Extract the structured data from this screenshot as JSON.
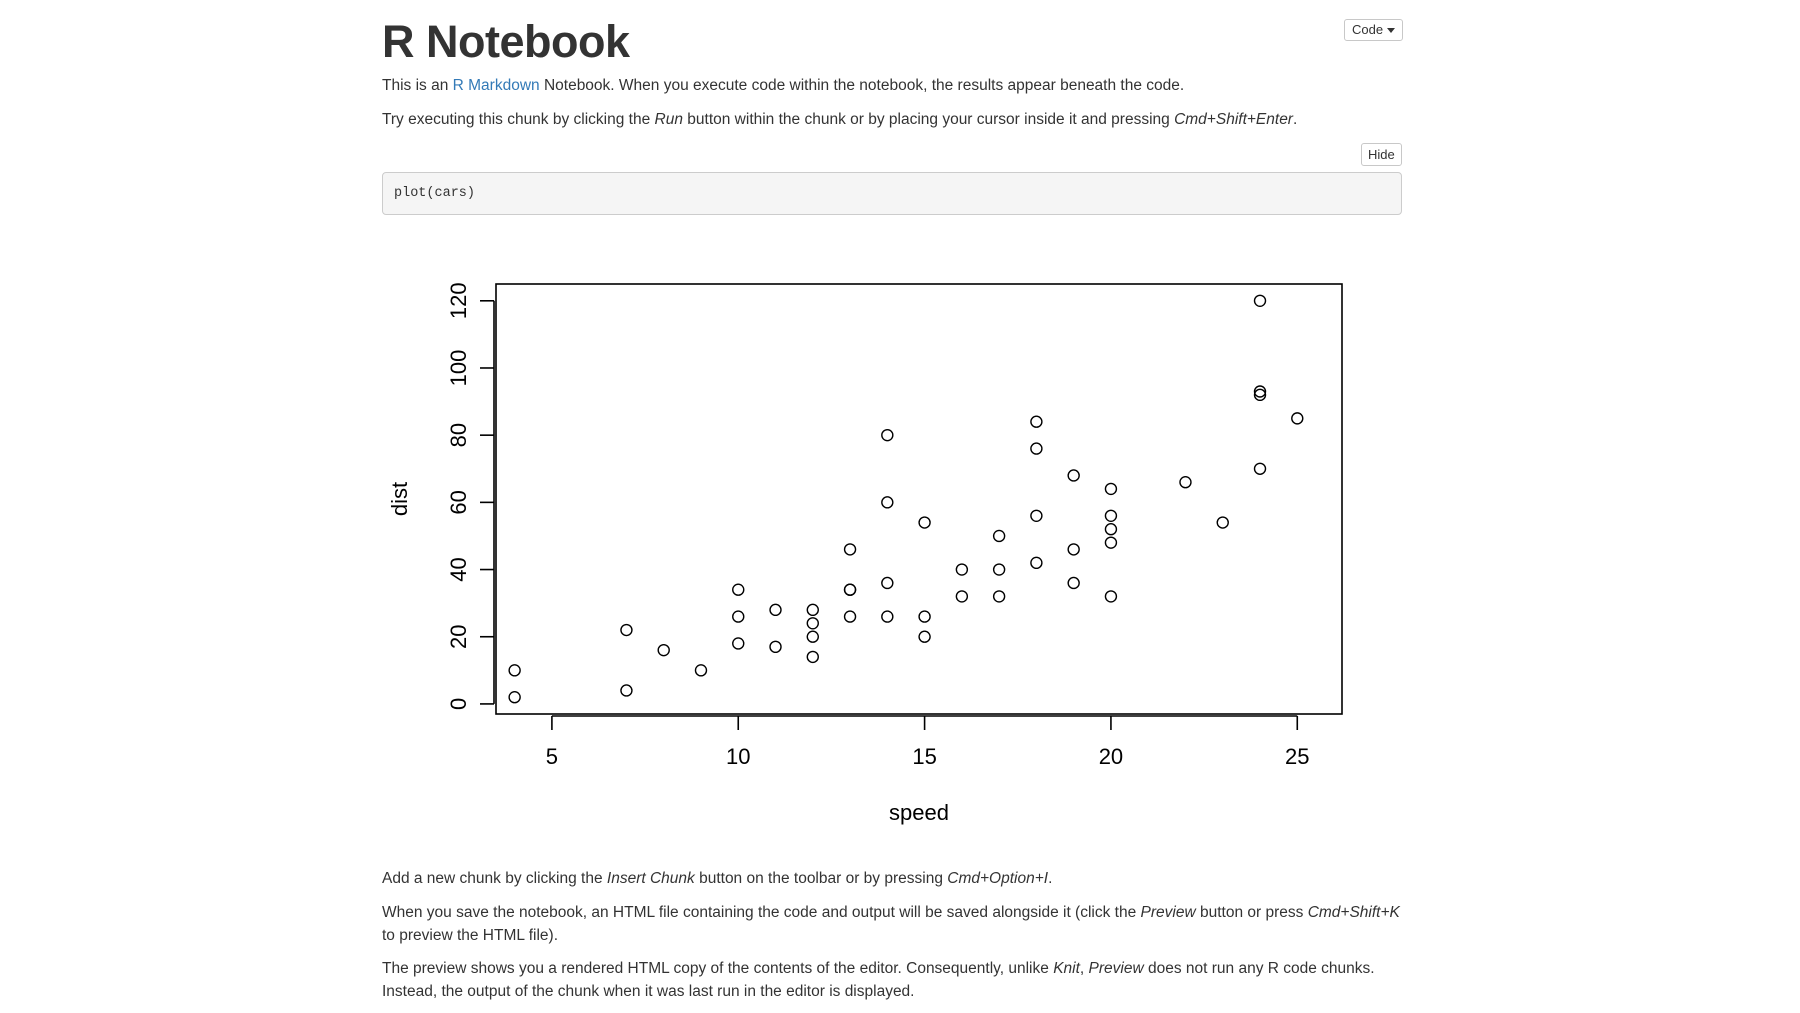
{
  "header": {
    "title": "R Notebook",
    "code_button_label": "Code"
  },
  "intro": {
    "p1_before": "This is an ",
    "p1_link": "R Markdown",
    "p1_after": " Notebook. When you execute code within the notebook, the results appear beneath the code.",
    "p2_before": "Try executing this chunk by clicking the ",
    "p2_run": "Run",
    "p2_middle": " button within the chunk or by placing your cursor inside it and pressing ",
    "p2_shortcut": "Cmd+Shift+Enter",
    "p2_after": "."
  },
  "chunk": {
    "hide_button_label": "Hide",
    "code": "plot(cars)"
  },
  "outro": {
    "p3_before": "Add a new chunk by clicking the ",
    "p3_insert": "Insert Chunk",
    "p3_middle": " button on the toolbar or by pressing ",
    "p3_shortcut": "Cmd+Option+I",
    "p3_after": ".",
    "p4_before": "When you save the notebook, an HTML file containing the code and output will be saved alongside it (click the ",
    "p4_preview": "Preview",
    "p4_middle": " button or press ",
    "p4_shortcut": "Cmd+Shift+K",
    "p4_after": " to preview the HTML file).",
    "p5_before": "The preview shows you a rendered HTML copy of the contents of the editor. Consequently, unlike ",
    "p5_knit": "Knit",
    "p5_comma": ", ",
    "p5_preview": "Preview",
    "p5_after": " does not run any R code chunks. Instead, the output of the chunk when it was last run in the editor is displayed."
  },
  "chart_data": {
    "type": "scatter",
    "xlabel": "speed",
    "ylabel": "dist",
    "xlim": [
      3.5,
      26.2
    ],
    "ylim": [
      -3,
      125
    ],
    "xticks": [
      5,
      10,
      15,
      20,
      25
    ],
    "yticks": [
      0,
      20,
      40,
      60,
      80,
      100,
      120
    ],
    "grid": false,
    "marker": "open-circle",
    "points": [
      [
        4,
        2
      ],
      [
        4,
        10
      ],
      [
        7,
        4
      ],
      [
        7,
        22
      ],
      [
        8,
        16
      ],
      [
        9,
        10
      ],
      [
        10,
        18
      ],
      [
        10,
        26
      ],
      [
        10,
        34
      ],
      [
        11,
        17
      ],
      [
        11,
        28
      ],
      [
        12,
        14
      ],
      [
        12,
        20
      ],
      [
        12,
        24
      ],
      [
        12,
        28
      ],
      [
        13,
        26
      ],
      [
        13,
        34
      ],
      [
        13,
        34
      ],
      [
        13,
        46
      ],
      [
        14,
        26
      ],
      [
        14,
        36
      ],
      [
        14,
        60
      ],
      [
        14,
        80
      ],
      [
        15,
        20
      ],
      [
        15,
        26
      ],
      [
        15,
        54
      ],
      [
        16,
        32
      ],
      [
        16,
        40
      ],
      [
        17,
        32
      ],
      [
        17,
        40
      ],
      [
        17,
        50
      ],
      [
        18,
        42
      ],
      [
        18,
        56
      ],
      [
        18,
        76
      ],
      [
        18,
        84
      ],
      [
        19,
        36
      ],
      [
        19,
        46
      ],
      [
        19,
        68
      ],
      [
        20,
        32
      ],
      [
        20,
        48
      ],
      [
        20,
        52
      ],
      [
        20,
        56
      ],
      [
        20,
        64
      ],
      [
        22,
        66
      ],
      [
        23,
        54
      ],
      [
        24,
        70
      ],
      [
        24,
        92
      ],
      [
        24,
        93
      ],
      [
        24,
        120
      ],
      [
        25,
        85
      ]
    ]
  }
}
